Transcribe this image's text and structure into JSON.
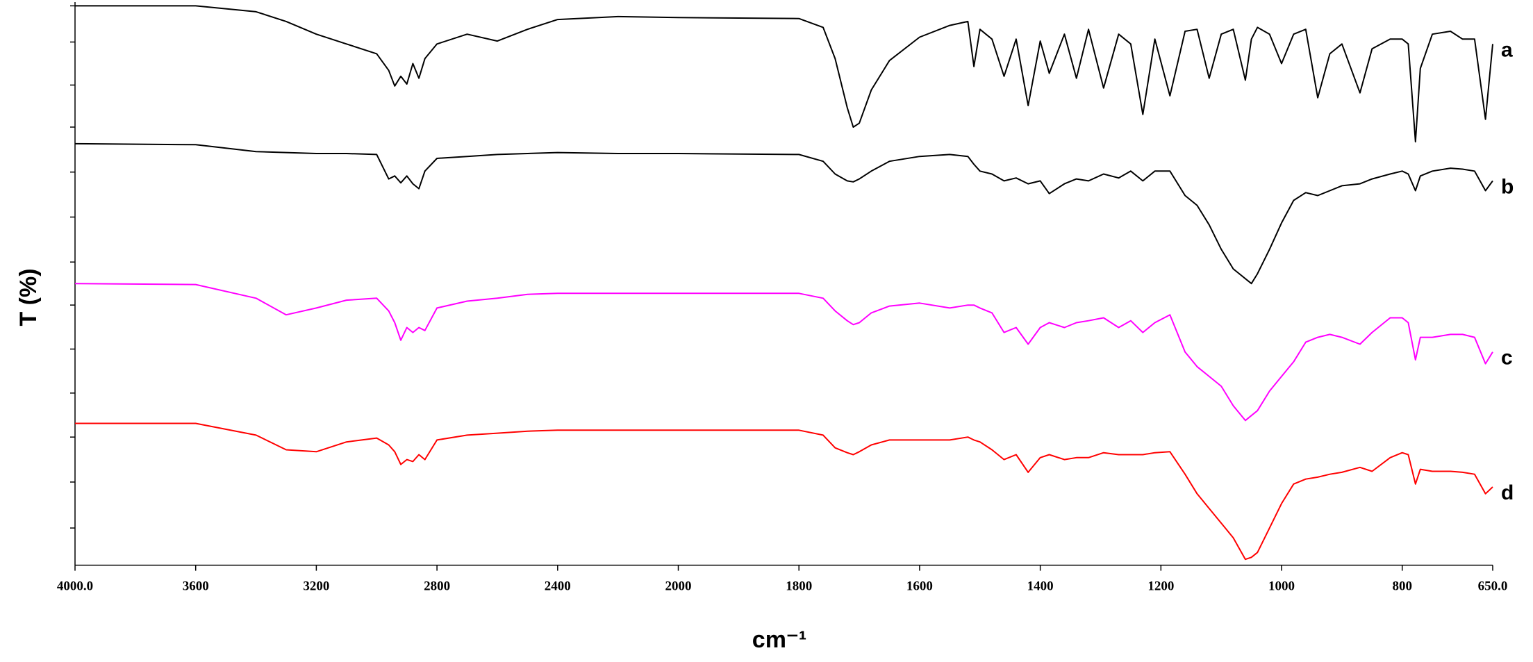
{
  "chart_data": {
    "type": "line",
    "xlabel": "cm⁻¹",
    "ylabel": "T (%)",
    "xlim": [
      4000,
      650
    ],
    "xscale_break": 2000,
    "xscale_factor": 2,
    "xticks": [
      {
        "value": 4000,
        "label": "4000.0"
      },
      3600,
      3200,
      2800,
      2400,
      2000,
      1800,
      1600,
      1400,
      1200,
      1000,
      800,
      {
        "value": 650,
        "label": "650.0"
      }
    ],
    "ylim": [
      0,
      573
    ],
    "yticks": [
      38,
      85,
      131,
      176,
      221,
      266,
      310,
      356,
      402,
      448,
      491,
      535,
      572
    ],
    "ytick_labels": false,
    "x": [
      4000,
      3600,
      3400,
      3300,
      3200,
      3100,
      3000,
      2960,
      2940,
      2920,
      2900,
      2880,
      2860,
      2840,
      2800,
      2700,
      2600,
      2500,
      2400,
      2200,
      2000,
      1800,
      1760,
      1740,
      1720,
      1710,
      1700,
      1680,
      1650,
      1600,
      1550,
      1520,
      1510,
      1500,
      1480,
      1460,
      1440,
      1420,
      1400,
      1385,
      1360,
      1340,
      1320,
      1295,
      1270,
      1250,
      1230,
      1210,
      1185,
      1160,
      1140,
      1120,
      1100,
      1080,
      1060,
      1050,
      1040,
      1020,
      1000,
      980,
      960,
      940,
      920,
      900,
      870,
      850,
      820,
      800,
      790,
      778,
      770,
      750,
      720,
      700,
      680,
      662,
      650
    ],
    "series": [
      {
        "name": "a",
        "color": "#000000",
        "values": [
          572,
          572,
          566,
          556,
          543,
          533,
          523,
          506,
          490,
          500,
          492,
          513,
          498,
          518,
          533,
          543,
          536,
          548,
          558,
          561,
          560,
          559,
          550,
          518,
          468,
          448,
          452,
          486,
          516,
          540,
          552,
          556,
          510,
          548,
          538,
          500,
          538,
          470,
          536,
          503,
          543,
          498,
          548,
          488,
          543,
          533,
          461,
          538,
          480,
          546,
          548,
          498,
          543,
          548,
          496,
          538,
          550,
          543,
          513,
          543,
          548,
          478,
          523,
          533,
          483,
          528,
          538,
          538,
          533,
          433,
          508,
          543,
          546,
          538,
          538,
          456,
          533
        ]
      },
      {
        "name": "b",
        "color": "#000000",
        "values": [
          431,
          430,
          423,
          422,
          421,
          421,
          420,
          395,
          398,
          391,
          398,
          390,
          385,
          403,
          416,
          418,
          420,
          421,
          422,
          421,
          421,
          420,
          413,
          400,
          393,
          392,
          395,
          403,
          413,
          418,
          420,
          418,
          410,
          403,
          400,
          393,
          396,
          390,
          393,
          380,
          390,
          395,
          393,
          400,
          396,
          403,
          393,
          403,
          403,
          378,
          368,
          348,
          323,
          303,
          293,
          288,
          298,
          323,
          350,
          373,
          381,
          378,
          383,
          388,
          390,
          395,
          400,
          403,
          400,
          383,
          398,
          403,
          406,
          405,
          403,
          383,
          393
        ]
      },
      {
        "name": "c",
        "color": "#ff00ff",
        "values": [
          288,
          287,
          273,
          256,
          263,
          271,
          273,
          260,
          248,
          230,
          243,
          238,
          243,
          240,
          263,
          270,
          273,
          277,
          278,
          278,
          278,
          278,
          273,
          260,
          250,
          246,
          248,
          258,
          265,
          268,
          263,
          266,
          266,
          263,
          258,
          238,
          243,
          226,
          243,
          248,
          243,
          248,
          250,
          253,
          243,
          250,
          238,
          248,
          256,
          218,
          203,
          193,
          183,
          163,
          148,
          153,
          158,
          178,
          193,
          208,
          228,
          233,
          236,
          233,
          226,
          238,
          253,
          253,
          248,
          210,
          233,
          233,
          236,
          236,
          233,
          206,
          218
        ]
      },
      {
        "name": "d",
        "color": "#ff0000",
        "values": [
          145,
          145,
          133,
          118,
          116,
          126,
          130,
          123,
          116,
          103,
          108,
          106,
          113,
          108,
          128,
          133,
          135,
          137,
          138,
          138,
          138,
          138,
          133,
          120,
          115,
          113,
          116,
          123,
          128,
          128,
          128,
          131,
          128,
          126,
          118,
          108,
          113,
          95,
          110,
          113,
          108,
          110,
          110,
          115,
          113,
          113,
          113,
          115,
          116,
          93,
          73,
          58,
          43,
          28,
          6,
          8,
          13,
          38,
          63,
          83,
          88,
          90,
          93,
          95,
          100,
          96,
          110,
          115,
          113,
          83,
          98,
          96,
          96,
          95,
          93,
          73,
          80
        ]
      }
    ]
  }
}
